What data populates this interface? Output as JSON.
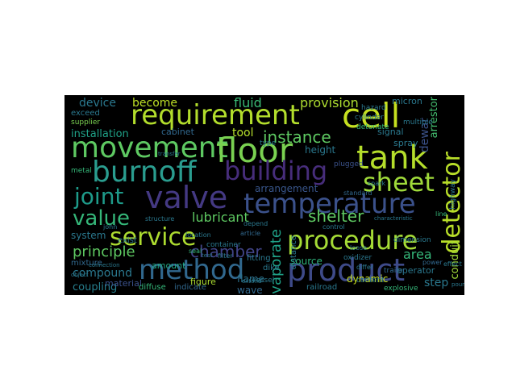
{
  "word_cloud": {
    "words": [
      {
        "text": "requirement",
        "color": "#b2dd2c"
      },
      {
        "text": "cell",
        "color": "#c6e020"
      },
      {
        "text": "movement",
        "color": "#5ec962"
      },
      {
        "text": "floor",
        "color": "#7ad151"
      },
      {
        "text": "tank",
        "color": "#b5de2b"
      },
      {
        "text": "burnoff",
        "color": "#2a9d8f"
      },
      {
        "text": "building",
        "color": "#472d7b"
      },
      {
        "text": "sheet",
        "color": "#9fda3a"
      },
      {
        "text": "valve",
        "color": "#443983"
      },
      {
        "text": "temperature",
        "color": "#3b518b"
      },
      {
        "text": "joint",
        "color": "#1e9b8a"
      },
      {
        "text": "value",
        "color": "#35b779"
      },
      {
        "text": "service",
        "color": "#addc30"
      },
      {
        "text": "procedure",
        "color": "#a5db36"
      },
      {
        "text": "method",
        "color": "#31688e"
      },
      {
        "text": "product",
        "color": "#3e4a89"
      },
      {
        "text": "detector",
        "color": "#b8de29"
      },
      {
        "text": "instance",
        "color": "#5ec962"
      },
      {
        "text": "principle",
        "color": "#5ec962"
      },
      {
        "text": "chamber",
        "color": "#414487"
      },
      {
        "text": "shelter",
        "color": "#5ec962"
      },
      {
        "text": "fluid",
        "color": "#3aba76"
      },
      {
        "text": "provision",
        "color": "#addc30"
      },
      {
        "text": "device",
        "color": "#2a788e"
      },
      {
        "text": "become",
        "color": "#bddf26"
      },
      {
        "text": "tool",
        "color": "#b5de2b"
      },
      {
        "text": "installation",
        "color": "#1fa187"
      },
      {
        "text": "lubricant",
        "color": "#5ec962"
      },
      {
        "text": "evaporate",
        "color": "#1fa187"
      },
      {
        "text": "compound",
        "color": "#2a788e"
      },
      {
        "text": "coupling",
        "color": "#277f8e"
      },
      {
        "text": "arrangement",
        "color": "#39568c"
      },
      {
        "text": "flame",
        "color": "#2c728e"
      },
      {
        "text": "source",
        "color": "#2fb47c"
      },
      {
        "text": "area",
        "color": "#35b779"
      },
      {
        "text": "step",
        "color": "#2a788e"
      },
      {
        "text": "dewar",
        "color": "#3b528b"
      },
      {
        "text": "conduit",
        "color": "#a0da39"
      },
      {
        "text": "arrestor",
        "color": "#44bf70"
      },
      {
        "text": "height",
        "color": "#2a788e"
      },
      {
        "text": "system",
        "color": "#2a788e"
      },
      {
        "text": "value",
        "color": "#35b779"
      },
      {
        "text": "dynamic",
        "color": "#c8e020"
      },
      {
        "text": "wave",
        "color": "#31688e"
      },
      {
        "text": "material",
        "color": "#3b528b"
      },
      {
        "text": "amount",
        "color": "#22a884"
      },
      {
        "text": "cabinet",
        "color": "#31688e"
      },
      {
        "text": "figure",
        "color": "#addc30"
      },
      {
        "text": "signal",
        "color": "#2a788e"
      },
      {
        "text": "micron",
        "color": "#2a788e"
      },
      {
        "text": "spray",
        "color": "#2a788e"
      },
      {
        "text": "operator",
        "color": "#2a788e"
      },
      {
        "text": "exceed",
        "color": "#2a788e"
      },
      {
        "text": "supplier",
        "color": "#7ad151"
      },
      {
        "text": "mixture",
        "color": "#31688e"
      },
      {
        "text": "diffuse",
        "color": "#35b779"
      },
      {
        "text": "indicate",
        "color": "#31688e"
      },
      {
        "text": "exist",
        "color": "#2a788e"
      },
      {
        "text": "fitting",
        "color": "#2a788e"
      },
      {
        "text": "dike",
        "color": "#2a788e"
      },
      {
        "text": "vessel",
        "color": "#2a788e"
      },
      {
        "text": "railroad",
        "color": "#2a788e"
      },
      {
        "text": "content",
        "color": "#2a788e"
      },
      {
        "text": "explosive",
        "color": "#35b779"
      },
      {
        "text": "trailer",
        "color": "#31688e"
      },
      {
        "text": "oxidizer",
        "color": "#2a788e"
      },
      {
        "text": "cylinder",
        "color": "#2a788e"
      },
      {
        "text": "detonate",
        "color": "#35b779"
      },
      {
        "text": "hazard",
        "color": "#2a788e"
      },
      {
        "text": "type",
        "color": "#2a788e"
      },
      {
        "text": "container",
        "color": "#2a788e"
      },
      {
        "text": "location",
        "color": "#2a788e"
      },
      {
        "text": "metal",
        "color": "#35b779"
      },
      {
        "text": "structure",
        "color": "#2a788e"
      },
      {
        "text": "distance",
        "color": "#2a788e"
      },
      {
        "text": "john",
        "color": "#2a788e"
      },
      {
        "text": "article",
        "color": "#31688e"
      },
      {
        "text": "control",
        "color": "#2a788e"
      },
      {
        "text": "depend",
        "color": "#2a788e"
      },
      {
        "text": "dimension",
        "color": "#2a788e"
      },
      {
        "text": "standard",
        "color": "#31688e"
      },
      {
        "text": "spark",
        "color": "#2a788e"
      },
      {
        "text": "line",
        "color": "#35b779"
      },
      {
        "text": "multiple",
        "color": "#2a788e"
      },
      {
        "text": "highway",
        "color": "#2a788e"
      },
      {
        "text": "power",
        "color": "#31688e"
      },
      {
        "text": "effect",
        "color": "#2a788e"
      },
      {
        "text": "differ",
        "color": "#2a788e"
      },
      {
        "text": "loose",
        "color": "#2a788e"
      },
      {
        "text": "seal",
        "color": "#35b779"
      },
      {
        "text": "pound",
        "color": "#2a788e"
      },
      {
        "text": "object",
        "color": "#2a788e"
      },
      {
        "text": "connection",
        "color": "#2a788e"
      },
      {
        "text": "transfer",
        "color": "#2a788e"
      },
      {
        "text": "extend",
        "color": "#2a788e"
      },
      {
        "text": "test",
        "color": "#2a788e"
      },
      {
        "text": "filter",
        "color": "#2a788e"
      },
      {
        "text": "plugged",
        "color": "#3b528b"
      },
      {
        "text": "characteristic",
        "color": "#2a788e"
      }
    ]
  }
}
